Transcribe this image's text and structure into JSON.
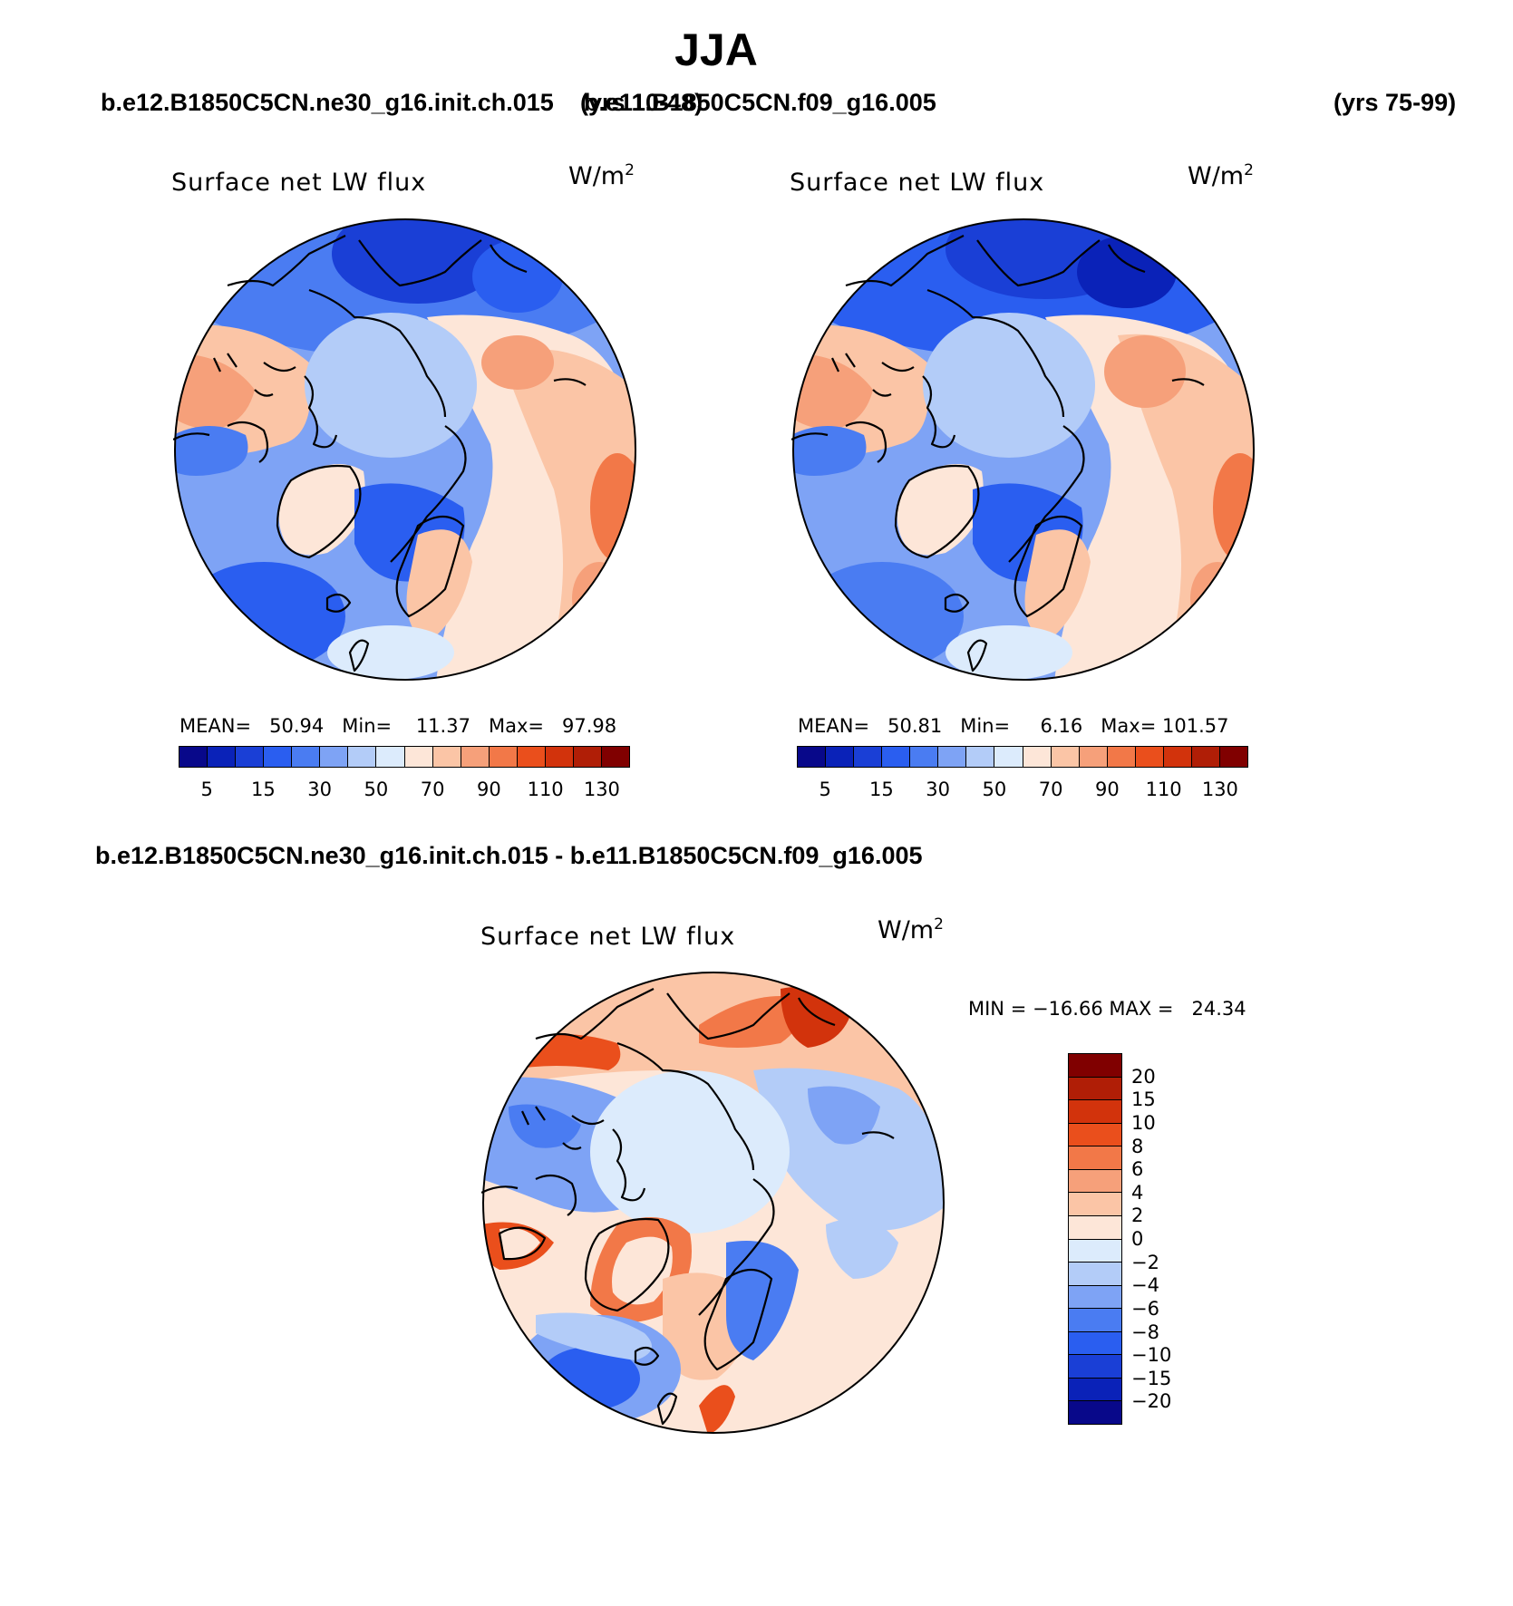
{
  "figure": {
    "season": "JJA",
    "case1": {
      "name": "b.e12.B1850C5CN.ne30_g16.init.ch.015",
      "years": "(yrs 10-48)"
    },
    "case2": {
      "name": "b.e11.B1850C5CN.f09_g16.005",
      "years": "(yrs 75-99)"
    },
    "diff_title": "b.e12.B1850C5CN.ne30_g16.init.ch.015 - b.e11.B1850C5CN.f09_g16.005"
  },
  "panels": [
    {
      "title": "Surface net LW flux",
      "units": "W/m",
      "units_exp": "2",
      "stats": {
        "mean_label": "MEAN=",
        "mean": "50.94",
        "min_label": "Min=",
        "min": "11.37",
        "max_label": "Max=",
        "max": "97.98"
      },
      "colorbar_ticks": [
        "5",
        "15",
        "30",
        "50",
        "70",
        "90",
        "110",
        "130"
      ]
    },
    {
      "title": "Surface net LW flux",
      "units": "W/m",
      "units_exp": "2",
      "stats": {
        "mean_label": "MEAN=",
        "mean": "50.81",
        "min_label": "Min=",
        "min": "6.16",
        "max_label": "Max=",
        "max": "101.57"
      },
      "colorbar_ticks": [
        "5",
        "15",
        "30",
        "50",
        "70",
        "90",
        "110",
        "130"
      ]
    },
    {
      "title": "Surface net LW flux",
      "units": "W/m",
      "units_exp": "2",
      "stats_text": "MIN = −16.66 MAX =   24.34",
      "colorbar_ticks": [
        "20",
        "15",
        "10",
        "8",
        "6",
        "4",
        "2",
        "0",
        "−2",
        "−4",
        "−6",
        "−8",
        "−10",
        "−15",
        "−20"
      ]
    }
  ],
  "colors": {
    "abs_scale": [
      "#08088a",
      "#0a22b8",
      "#1a3fd6",
      "#2a5ef0",
      "#4a7cf2",
      "#7ea3f5",
      "#b3ccf8",
      "#dcebfc",
      "#fde6d8",
      "#fbc5a6",
      "#f6a07a",
      "#f27848",
      "#ea4f1c",
      "#d2330c",
      "#b01e06",
      "#800000"
    ],
    "diff_scale": [
      "#800000",
      "#b01e06",
      "#d2330c",
      "#ea4f1c",
      "#f27848",
      "#f6a07a",
      "#fbc5a6",
      "#fde6d8",
      "#dcebfc",
      "#b3ccf8",
      "#7ea3f5",
      "#4a7cf2",
      "#2a5ef0",
      "#1a3fd6",
      "#0a22b8",
      "#08088a"
    ]
  }
}
